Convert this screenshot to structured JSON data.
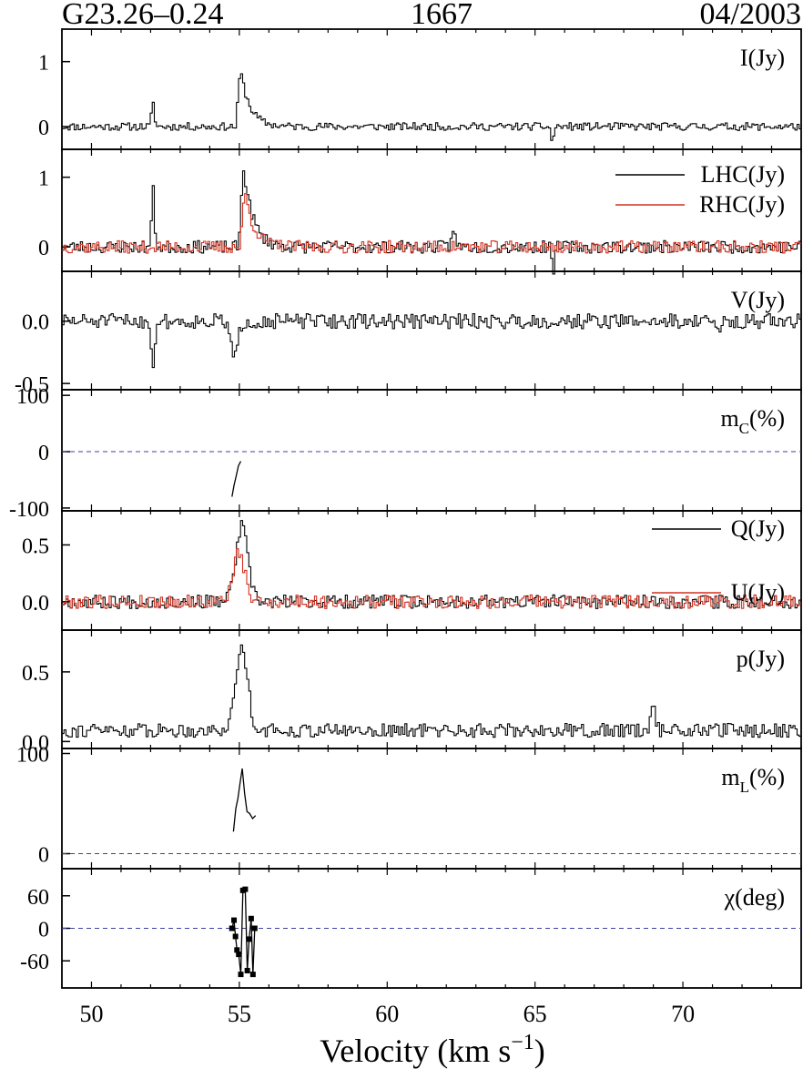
{
  "header": {
    "source": "G23.26–0.24",
    "frequency": "1667",
    "date": "04/2003"
  },
  "colors": {
    "black": "#000000",
    "red": "#d03020",
    "zero_line": "#4040a0"
  },
  "chart_data": {
    "type": "line",
    "shared_x": {
      "label_main": "Velocity (km s",
      "label_sup": "−1",
      "label_close": ")",
      "xlim": [
        49,
        74
      ],
      "ticks": [
        50,
        55,
        60,
        65,
        70
      ],
      "tick_labels": [
        "50",
        "55",
        "60",
        "65",
        "70"
      ]
    },
    "panels": [
      {
        "id": "I",
        "label": "I(Jy)",
        "ylim": [
          -0.35,
          1.5
        ],
        "ticks": [
          0,
          1
        ],
        "tick_labels": [
          "0",
          "1"
        ],
        "series": [
          {
            "color": "#000000",
            "style": "step",
            "noise": 0.06,
            "seed": 11,
            "features": [
              [
                52.05,
                0.35,
                0.05
              ],
              [
                55.0,
                0.9,
                0.35
              ],
              [
                65.55,
                -0.22,
                0.05
              ]
            ]
          }
        ]
      },
      {
        "id": "LR",
        "label": "",
        "ylim": [
          -0.35,
          1.4
        ],
        "ticks": [
          0,
          1
        ],
        "tick_labels": [
          "0",
          "1"
        ],
        "legend": [
          "LHC(Jy)",
          "RHC(Jy)"
        ],
        "series": [
          {
            "name": "LHC(Jy)",
            "color": "#000000",
            "style": "step",
            "noise": 0.09,
            "seed": 23,
            "features": [
              [
                52.05,
                0.8,
                0.05
              ],
              [
                55.1,
                1.2,
                0.35
              ],
              [
                62.2,
                0.3,
                0.05
              ],
              [
                65.6,
                -0.3,
                0.05
              ]
            ]
          },
          {
            "name": "RHC(Jy)",
            "color": "#d03020",
            "style": "step",
            "noise": 0.09,
            "seed": 37,
            "features": [
              [
                55.15,
                0.82,
                0.35
              ]
            ]
          }
        ]
      },
      {
        "id": "V",
        "label": "V(Jy)",
        "ylim": [
          -0.55,
          0.4
        ],
        "ticks": [
          0.0,
          -0.5
        ],
        "tick_labels": [
          "0.0",
          "-0.5"
        ],
        "series": [
          {
            "color": "#000000",
            "style": "step",
            "noise": 0.06,
            "seed": 51,
            "features": [
              [
                52.05,
                -0.42,
                0.05
              ],
              [
                54.8,
                -0.3,
                0.12
              ],
              [
                71.2,
                -0.15,
                0.05
              ]
            ]
          }
        ]
      },
      {
        "id": "mC",
        "label": "m",
        "label_sub": "C",
        "label_suffix": "(%)",
        "ylim": [
          -105,
          110
        ],
        "ticks": [
          100,
          0,
          -100
        ],
        "tick_labels": [
          "100",
          "0",
          "-100"
        ],
        "zero_line": true,
        "series": [
          {
            "color": "#000000",
            "style": "line",
            "points": [
              [
                54.75,
                -80
              ],
              [
                54.82,
                -60
              ],
              [
                54.9,
                -42
              ],
              [
                54.97,
                -25
              ],
              [
                55.05,
                -17
              ]
            ]
          }
        ]
      },
      {
        "id": "QU",
        "label": "",
        "ylim": [
          -0.25,
          0.8
        ],
        "ticks": [
          0.5,
          0.0
        ],
        "tick_labels": [
          "0.5",
          "0.0"
        ],
        "legend": [
          "Q(Jy)",
          "U(Jy)"
        ],
        "series": [
          {
            "name": "Q(Jy)",
            "color": "#000000",
            "style": "step",
            "noise": 0.06,
            "seed": 67,
            "features": [
              [
                55.05,
                0.66,
                0.2
              ]
            ]
          },
          {
            "name": "U(Jy)",
            "color": "#d03020",
            "style": "step",
            "noise": 0.06,
            "seed": 79,
            "features": [
              [
                54.95,
                0.42,
                0.2
              ]
            ]
          }
        ]
      },
      {
        "id": "p",
        "label": "p(Jy)",
        "ylim": [
          -0.05,
          0.8
        ],
        "ticks": [
          0.5,
          0.0
        ],
        "tick_labels": [
          "0.5",
          "0.0"
        ],
        "series": [
          {
            "color": "#000000",
            "style": "step",
            "noise": 0.05,
            "base": 0.08,
            "seed": 91,
            "features": [
              [
                55.05,
                0.6,
                0.2
              ],
              [
                68.95,
                0.2,
                0.08
              ]
            ]
          }
        ]
      },
      {
        "id": "mL",
        "label": "m",
        "label_sub": "L",
        "label_suffix": "(%)",
        "ylim": [
          -15,
          105
        ],
        "ticks": [
          100,
          0
        ],
        "tick_labels": [
          "100",
          "0"
        ],
        "zero_line": true,
        "series": [
          {
            "color": "#000000",
            "style": "line",
            "points": [
              [
                54.8,
                22
              ],
              [
                54.88,
                45
              ],
              [
                54.95,
                55
              ],
              [
                55.03,
                72
              ],
              [
                55.1,
                85
              ],
              [
                55.18,
                60
              ],
              [
                55.26,
                42
              ],
              [
                55.35,
                40
              ],
              [
                55.45,
                35
              ],
              [
                55.55,
                38
              ]
            ]
          }
        ]
      },
      {
        "id": "chi",
        "label": "χ(deg)",
        "ylim": [
          -110,
          110
        ],
        "ticks": [
          60,
          0,
          -60
        ],
        "tick_labels": [
          "60",
          "0",
          "-60"
        ],
        "zero_line": true,
        "series": [
          {
            "color": "#000000",
            "style": "line-markers",
            "points": [
              [
                54.75,
                0
              ],
              [
                54.82,
                15
              ],
              [
                54.87,
                -15
              ],
              [
                54.92,
                -40
              ],
              [
                54.98,
                -48
              ],
              [
                55.05,
                -85
              ],
              [
                55.12,
                70
              ],
              [
                55.2,
                72
              ],
              [
                55.27,
                -78
              ],
              [
                55.33,
                -20
              ],
              [
                55.4,
                18
              ],
              [
                55.46,
                -85
              ],
              [
                55.52,
                0
              ]
            ]
          }
        ]
      }
    ]
  }
}
